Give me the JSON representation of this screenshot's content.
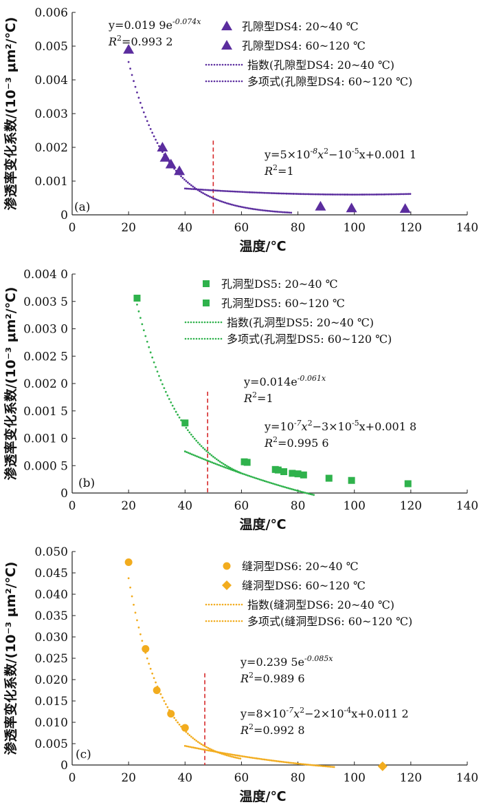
{
  "figure": {
    "xlabel": "温度/℃",
    "ylabel": "渗透率变化系数/(10⁻³ μm²/℃)"
  },
  "chart_data": [
    {
      "type": "scatter",
      "panel_label": "(a)",
      "xlim": [
        0,
        140
      ],
      "ylim": [
        0,
        0.006
      ],
      "x_ticks": [
        "0",
        "20",
        "40",
        "60",
        "80",
        "100",
        "120",
        "140"
      ],
      "y_ticks": [
        "0",
        "0.001",
        "0.002",
        "0.003",
        "0.004",
        "0.005",
        "0.006"
      ],
      "xlabel": "温度/℃",
      "ylabel": "渗透率变化系数/(10⁻³ μm²/℃)",
      "color": "#5b2d9e",
      "legend_position": "top-right",
      "divider_x": 50,
      "series": [
        {
          "name": "孔隙型DS4: 20~40 ℃",
          "marker": "triangle",
          "x": [
            20,
            32,
            33,
            35,
            38
          ],
          "y": [
            0.0049,
            0.002,
            0.0017,
            0.0015,
            0.0013
          ]
        },
        {
          "name": "孔隙型DS4: 60~120 ℃",
          "marker": "triangle",
          "x": [
            88,
            99,
            118
          ],
          "y": [
            0.00025,
            0.0002,
            0.00018
          ]
        }
      ],
      "fits": [
        {
          "name": "指数(孔隙型DS4: 20~40 ℃)",
          "kind": "exp",
          "a": 0.0199,
          "b": -0.074,
          "range": [
            20,
            78
          ]
        },
        {
          "name": "多项式(孔隙型DS4: 60~120 ℃)",
          "kind": "poly2",
          "c2": 5e-08,
          "c1": -1e-05,
          "c0": 0.0011,
          "range": [
            40,
            120
          ]
        }
      ],
      "annotations": [
        {
          "line1": "y=0.019 9e",
          "sup1": "-0.074x",
          "line2_label": "R",
          "line2": "=0.993 2"
        },
        {
          "line1": "y=5×10",
          "sup1": "-8",
          "line1b": "x",
          "sup1b": "2",
          "line1c": "−10",
          "sup1c": "-5",
          "line1d": "x+0.001 1",
          "line2_label": "R",
          "line2": "=1"
        }
      ]
    },
    {
      "type": "scatter",
      "panel_label": "(b)",
      "xlim": [
        0,
        140
      ],
      "ylim": [
        0,
        0.004
      ],
      "x_ticks": [
        "0",
        "20",
        "40",
        "60",
        "80",
        "100",
        "120",
        "140"
      ],
      "y_ticks": [
        "0",
        "0.000 5",
        "0.001 0",
        "0.001 5",
        "0.002 0",
        "0.002 5",
        "0.003 0",
        "0.003 5",
        "0.004 0"
      ],
      "xlabel": "温度/℃",
      "ylabel": "渗透率变化系数/(10⁻³ μm²/℃)",
      "color": "#2fb24c",
      "legend_position": "top-right",
      "divider_x": 48,
      "series": [
        {
          "name": "孔洞型DS5: 20~40 ℃",
          "marker": "square",
          "x": [
            23,
            40
          ],
          "y": [
            0.00356,
            0.00128
          ]
        },
        {
          "name": "孔洞型DS5: 60~120 ℃",
          "marker": "square",
          "x": [
            61,
            62,
            72,
            73,
            75,
            78,
            80,
            82,
            91,
            99,
            119
          ],
          "y": [
            0.00057,
            0.00056,
            0.00043,
            0.00042,
            0.00039,
            0.00036,
            0.00035,
            0.00033,
            0.00027,
            0.00023,
            0.00017
          ]
        }
      ],
      "fits": [
        {
          "name": "指数(孔洞型DS5: 20~40 ℃)",
          "kind": "exp",
          "a": 0.014,
          "b": -0.061,
          "range": [
            23,
            60
          ]
        },
        {
          "name": "多项式(孔洞型DS5: 60~120 ℃)",
          "kind": "poly2",
          "c2": 1e-07,
          "c1": -3e-05,
          "c0": 0.0018,
          "range": [
            40,
            120
          ]
        }
      ],
      "annotations": [
        {
          "line1": "y=0.014e",
          "sup1": "-0.061x",
          "line2_label": "R",
          "line2": "=1"
        },
        {
          "line1": "y=10",
          "sup1": "-7",
          "line1b": "x",
          "sup1b": "2",
          "line1c": "−3×10",
          "sup1c": "-5",
          "line1d": "x+0.001 8",
          "line2_label": "R",
          "line2": "=0.995 6"
        }
      ]
    },
    {
      "type": "scatter",
      "panel_label": "(c)",
      "xlim": [
        0,
        140
      ],
      "ylim": [
        0,
        0.05
      ],
      "x_ticks": [
        "0",
        "20",
        "40",
        "60",
        "80",
        "100",
        "120",
        "140"
      ],
      "y_ticks": [
        "0",
        "0.005",
        "0.010",
        "0.015",
        "0.020",
        "0.025",
        "0.030",
        "0.035",
        "0.040",
        "0.045",
        "0.050"
      ],
      "xlabel": "温度/℃",
      "ylabel": "渗透率变化系数/(10⁻³ μm²/℃)",
      "color": "#f2ac1e",
      "legend_position": "top-right",
      "divider_x": 47,
      "series": [
        {
          "name": "缝洞型DS6: 20~40 ℃",
          "marker": "circle",
          "x": [
            20,
            26,
            30,
            35,
            40
          ],
          "y": [
            0.0475,
            0.0272,
            0.0175,
            0.012,
            0.0087
          ]
        },
        {
          "name": "缝洞型DS6: 60~120 ℃",
          "marker": "diamond",
          "x": [
            110
          ],
          "y": [
            -0.0003
          ]
        }
      ],
      "fits": [
        {
          "name": "指数(缝洞型DS6: 20~40 ℃)",
          "kind": "exp",
          "a": 0.2395,
          "b": -0.085,
          "range": [
            20,
            60
          ]
        },
        {
          "name": "多项式(缝洞型DS6: 60~120 ℃)",
          "kind": "poly2",
          "c2": 8e-07,
          "c1": -0.0002,
          "c0": 0.0112,
          "range": [
            40,
            120
          ]
        }
      ],
      "annotations": [
        {
          "line1": "y=0.239 5e",
          "sup1": "-0.085x",
          "line2_label": "R",
          "line2": "=0.989 6"
        },
        {
          "line1": "y=8×10",
          "sup1": "-7",
          "line1b": "x",
          "sup1b": "2",
          "line1c": "−2×10",
          "sup1c": "-4",
          "line1d": "x+0.011 2",
          "line2_label": "R",
          "line2": "=0.992 8"
        }
      ]
    }
  ]
}
